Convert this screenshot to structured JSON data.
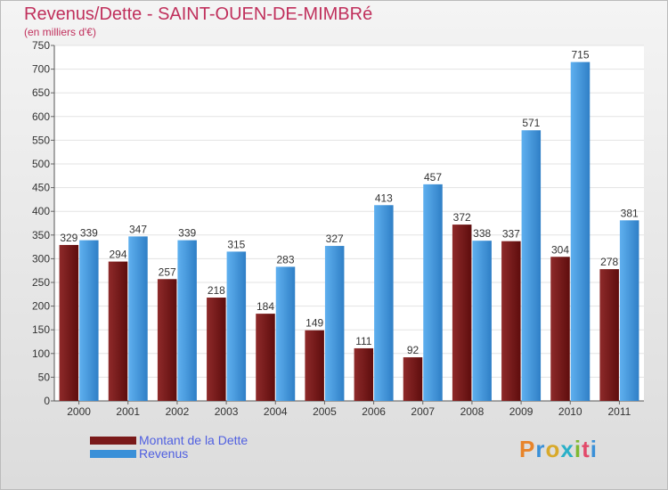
{
  "page": {
    "title": "Revenus/Dette - SAINT-OUEN-DE-MIMBRé",
    "subtitle": "(en milliers d'€)",
    "logo": "Proxiti"
  },
  "chart_data": {
    "type": "bar",
    "categories": [
      "2000",
      "2001",
      "2002",
      "2003",
      "2004",
      "2005",
      "2006",
      "2007",
      "2008",
      "2009",
      "2010",
      "2011"
    ],
    "series": [
      {
        "name": "Montant de la Dette",
        "color": "#7a1a1a",
        "values": [
          329,
          294,
          257,
          218,
          184,
          149,
          111,
          92,
          372,
          337,
          304,
          278
        ]
      },
      {
        "name": "Revenus",
        "color": "#3a90d8",
        "values": [
          339,
          347,
          339,
          315,
          283,
          327,
          413,
          457,
          338,
          571,
          715,
          381
        ]
      }
    ],
    "ylim": [
      0,
      750
    ],
    "yticks": [
      0,
      50,
      100,
      150,
      200,
      250,
      300,
      350,
      400,
      450,
      500,
      550,
      600,
      650,
      700,
      750
    ],
    "grid": true,
    "legend": "bottom-left"
  }
}
